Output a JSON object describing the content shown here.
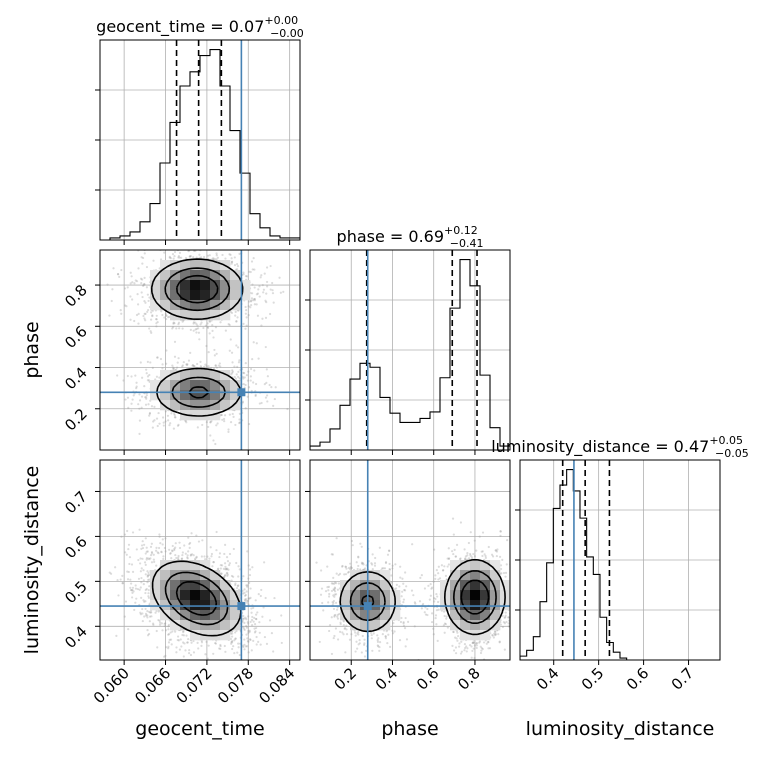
{
  "chart_data": {
    "type": "corner",
    "parameters": [
      {
        "name": "geocent_time",
        "label": "geocent_time",
        "title": {
          "prefix": "geocent_time = ",
          "median": "0.07",
          "plus": "+0.00",
          "minus": "−0.00"
        },
        "range": [
          0.0565,
          0.0855
        ],
        "ticks": [
          0.06,
          0.066,
          0.072,
          0.078,
          0.084
        ],
        "tick_labels": [
          "0.060",
          "0.066",
          "0.072",
          "0.078",
          "0.084"
        ],
        "truth": 0.077,
        "quantiles": [
          0.0676,
          0.0708,
          0.0741
        ],
        "hist_edges_start": 0.0565,
        "hist_bin_width": 0.00145,
        "hist_counts": [
          0,
          1,
          2,
          4,
          9,
          18,
          38,
          58,
          76,
          83,
          91,
          94,
          76,
          54,
          33,
          13,
          6,
          2,
          1,
          1
        ]
      },
      {
        "name": "phase",
        "label": "phase",
        "title": {
          "prefix": "phase = ",
          "median": "0.69",
          "plus": "+0.12",
          "minus": "−0.41"
        },
        "range": [
          0.0,
          0.97
        ],
        "ticks": [
          0.2,
          0.4,
          0.6,
          0.8
        ],
        "tick_labels": [
          "0.2",
          "0.4",
          "0.6",
          "0.8"
        ],
        "truth": 0.28,
        "quantiles": [
          0.275,
          0.69,
          0.81
        ],
        "hist_edges_start": 0.0,
        "hist_bin_width": 0.0485,
        "hist_counts": [
          3,
          6,
          16,
          34,
          54,
          66,
          63,
          40,
          28,
          21,
          21,
          24,
          29,
          55,
          108,
          145,
          125,
          57,
          17,
          3
        ]
      },
      {
        "name": "luminosity_distance",
        "label": "luminosity_distance",
        "title": {
          "prefix": "luminosity_distance = ",
          "median": "0.47",
          "plus": "+0.05",
          "minus": "−0.05"
        },
        "range": [
          0.325,
          0.77
        ],
        "ticks": [
          0.4,
          0.5,
          0.6,
          0.7
        ],
        "tick_labels": [
          "0.4",
          "0.5",
          "0.6",
          "0.7"
        ],
        "truth": 0.445,
        "quantiles": [
          0.42,
          0.47,
          0.524
        ],
        "hist_edges_start": 0.325,
        "hist_bin_width": 0.01483,
        "hist_counts": [
          2,
          5,
          12,
          30,
          50,
          78,
          90,
          98,
          87,
          73,
          53,
          44,
          22,
          9,
          4,
          1,
          0,
          0,
          0,
          0,
          0,
          0,
          0,
          0,
          0,
          0,
          0,
          0,
          0,
          0
        ]
      }
    ],
    "pairs": [
      {
        "x": "geocent_time",
        "y": "phase",
        "modes": [
          {
            "cx": 0.0706,
            "cy": 0.78,
            "sx": 0.0032,
            "sy": 0.07,
            "w": 0.62
          },
          {
            "cx": 0.0708,
            "cy": 0.28,
            "sx": 0.0032,
            "sy": 0.06,
            "w": 0.38
          }
        ]
      },
      {
        "x": "geocent_time",
        "y": "luminosity_distance",
        "modes": [
          {
            "cx": 0.0705,
            "cy": 0.462,
            "sx": 0.0031,
            "sy": 0.04,
            "w": 1.0,
            "rho": -0.35
          }
        ]
      },
      {
        "x": "phase",
        "y": "luminosity_distance",
        "modes": [
          {
            "cx": 0.8,
            "cy": 0.465,
            "sx": 0.07,
            "sy": 0.04,
            "w": 0.62
          },
          {
            "cx": 0.28,
            "cy": 0.455,
            "sx": 0.07,
            "sy": 0.035,
            "w": 0.38
          }
        ]
      }
    ],
    "grid": true,
    "truth_color": "#4682b4",
    "hist_color": "#000000"
  }
}
